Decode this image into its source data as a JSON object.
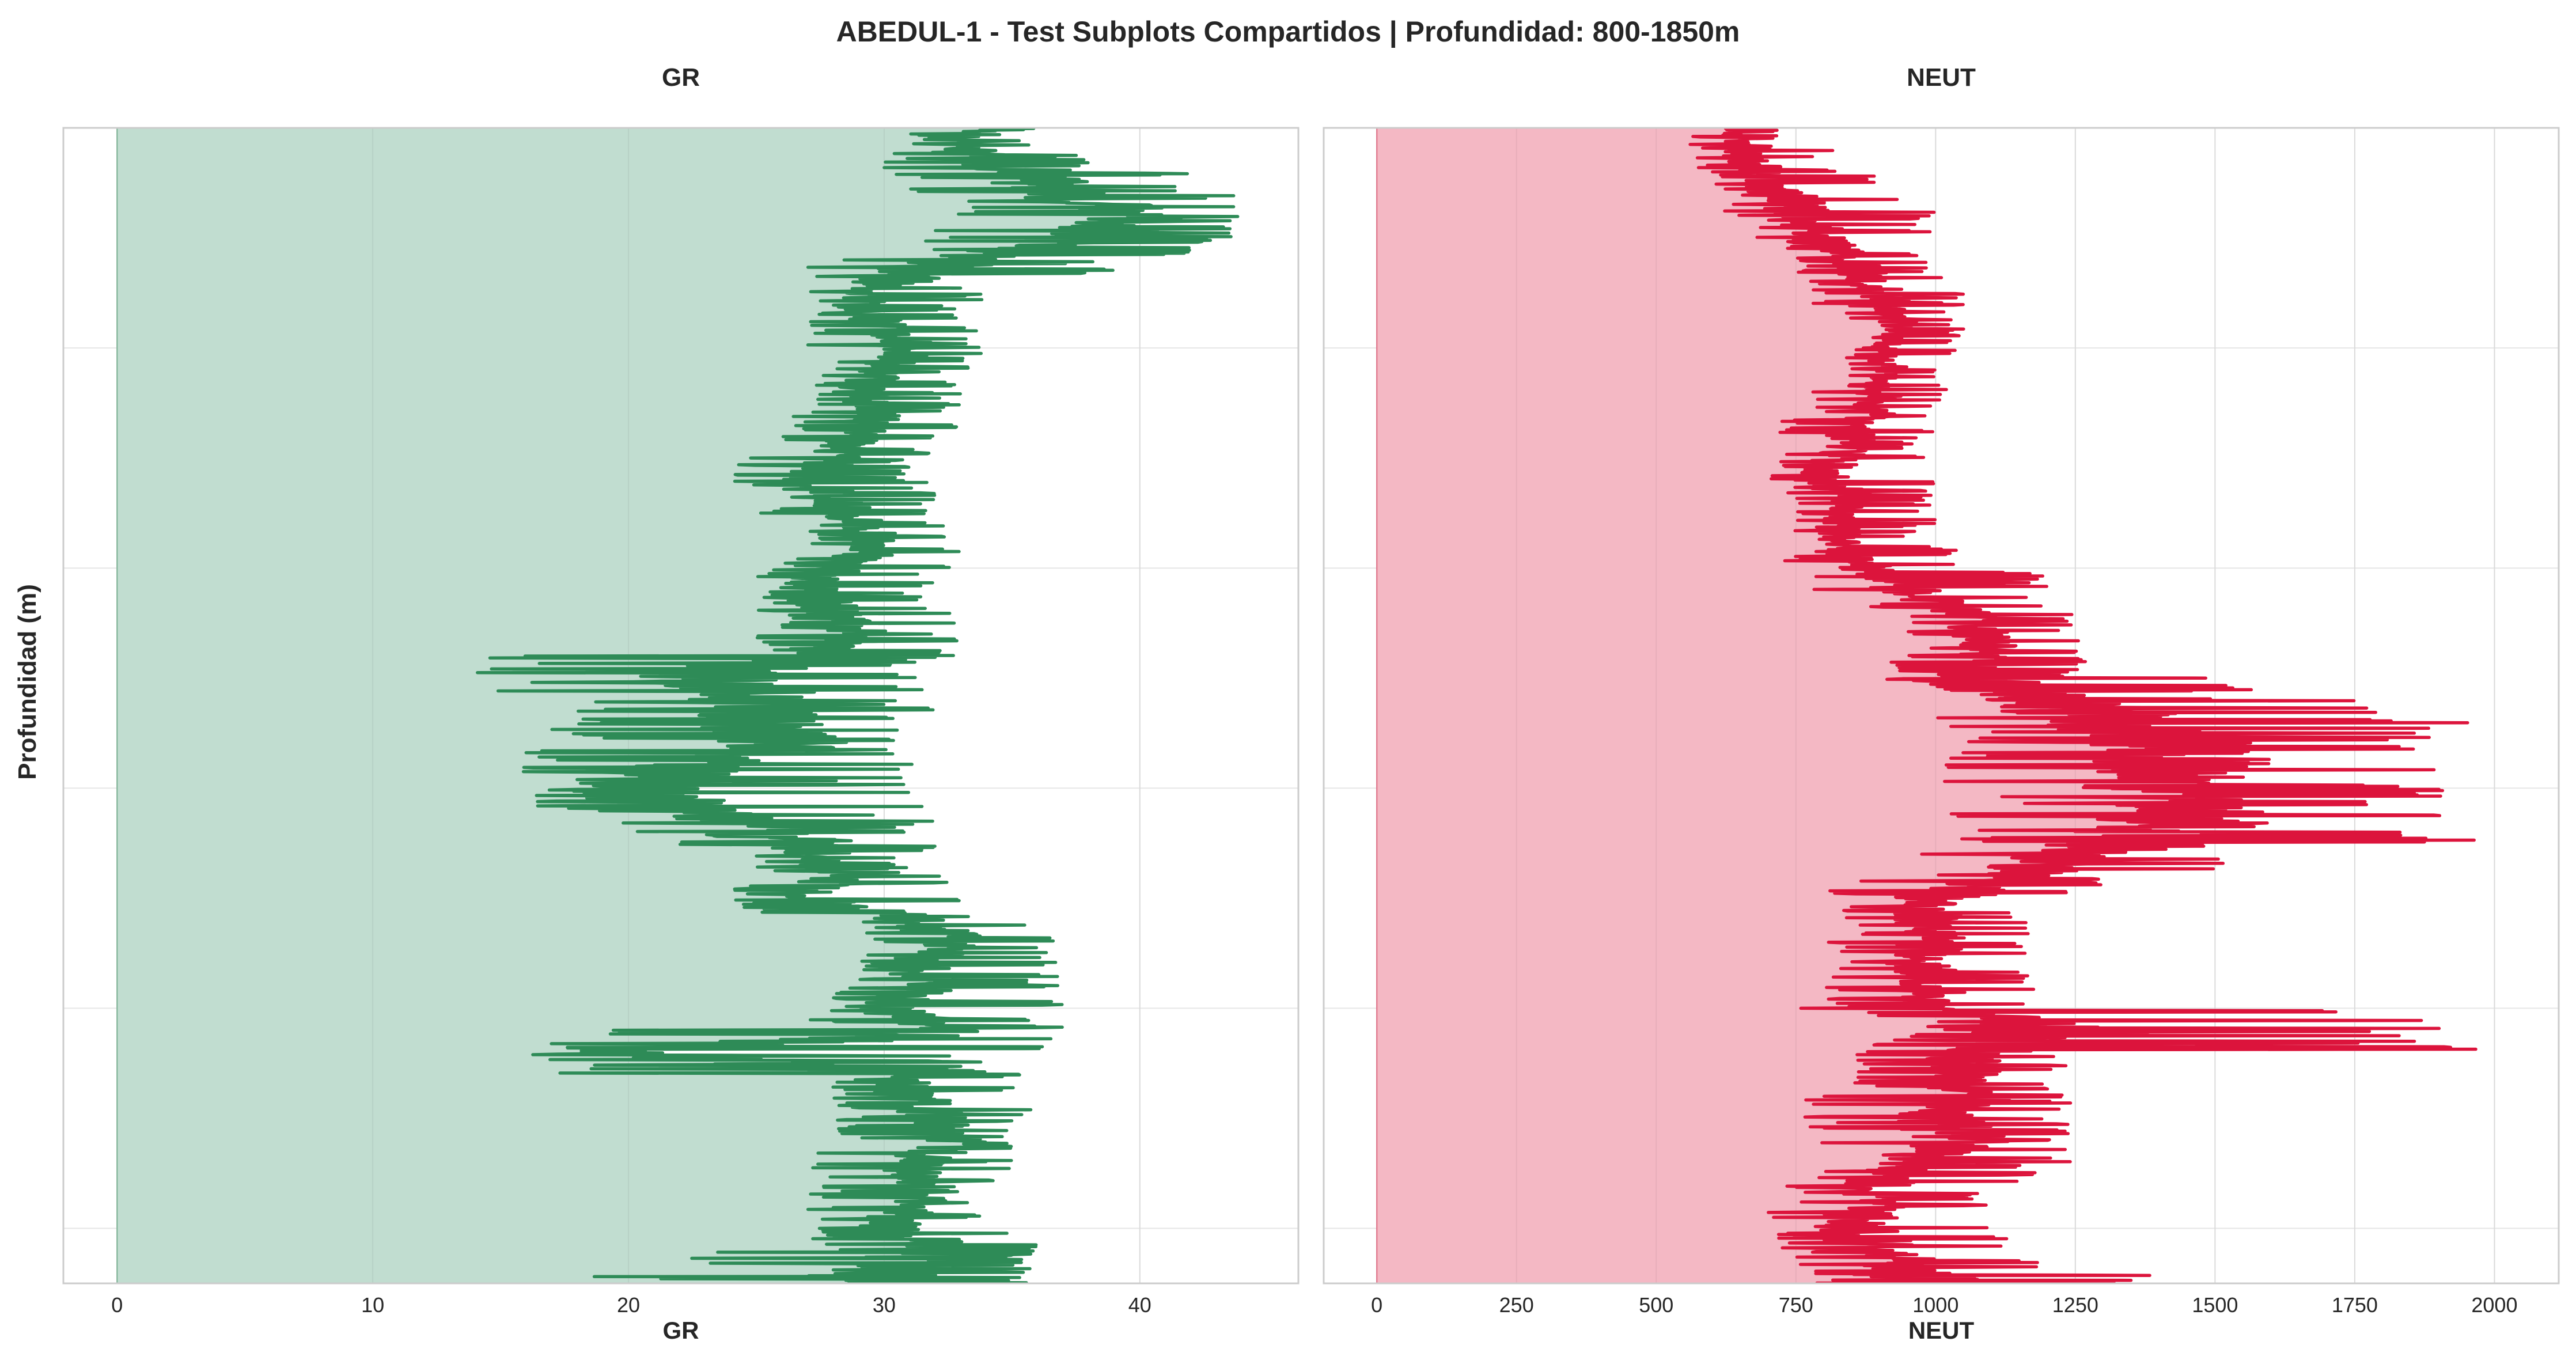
{
  "suptitle": "ABEDUL-1 - Test Subplots Compartidos | Profundidad: 800-1850m",
  "shared_ylabel": "Profundidad (m)",
  "chart_data": [
    {
      "type": "line",
      "title": "GR",
      "xlabel": "GR",
      "ylabel": "Profundidad (m)",
      "xlim": [
        -2.1,
        46.2
      ],
      "ylim": [
        1850,
        800
      ],
      "y_inverted": true,
      "grid": true,
      "fill_to_zero": true,
      "color": "#2e8b57",
      "fill_color": "#c1ddd0",
      "xticks": [
        0,
        10,
        20,
        30,
        40
      ],
      "series": [
        {
          "depth": [
            800,
            820,
            840,
            860,
            880,
            900,
            920,
            940,
            960,
            980,
            1000,
            1020,
            1040,
            1060,
            1080,
            1100,
            1120,
            1140,
            1160,
            1180,
            1200,
            1220,
            1240,
            1260,
            1280,
            1300,
            1320,
            1340,
            1360,
            1380,
            1400,
            1420,
            1440,
            1460,
            1480,
            1500,
            1520,
            1540,
            1560,
            1580,
            1600,
            1620,
            1640,
            1660,
            1680,
            1700,
            1720,
            1740,
            1760,
            1780,
            1800,
            1820,
            1840,
            1850
          ],
          "gr": [
            34,
            33,
            35,
            37,
            40,
            38,
            33,
            30,
            29,
            30,
            31,
            30,
            29,
            30,
            29,
            28,
            27,
            28,
            29,
            30,
            28,
            27,
            28,
            29,
            27,
            23,
            25,
            25,
            26,
            22,
            20,
            22,
            27,
            27,
            28,
            27,
            31,
            33,
            31,
            32,
            30,
            33,
            20,
            30,
            31,
            32,
            33,
            31,
            32,
            31,
            30,
            33,
            29,
            32
          ],
          "gr_low": [
            33,
            31,
            30,
            32,
            32,
            33,
            31,
            27,
            27,
            27,
            29,
            28,
            27,
            27,
            26,
            26,
            24,
            25,
            27,
            27,
            26,
            25,
            27,
            26,
            25,
            14,
            18,
            21,
            17,
            15,
            16,
            18,
            22,
            25,
            25,
            24,
            29,
            30,
            29,
            29,
            28,
            27,
            16,
            28,
            28,
            28,
            28,
            27,
            28,
            27,
            27,
            29,
            21,
            18
          ],
          "gr_high": [
            36,
            36,
            38,
            42,
            44,
            43,
            39,
            34,
            33,
            33,
            34,
            33,
            33,
            33,
            32,
            31,
            31,
            32,
            32,
            33,
            32,
            32,
            32,
            33,
            32,
            30,
            32,
            31,
            32,
            31,
            29,
            32,
            32,
            31,
            31,
            33,
            34,
            37,
            36,
            37,
            34,
            37,
            33,
            34,
            36,
            35,
            35,
            35,
            34,
            34,
            34,
            36,
            36,
            36
          ]
        }
      ]
    },
    {
      "type": "line",
      "title": "NEUT",
      "xlabel": "NEUT",
      "xlim": [
        -95,
        2115
      ],
      "ylim": [
        1850,
        800
      ],
      "y_inverted": true,
      "grid": true,
      "fill_to_zero": true,
      "color": "#dc143c",
      "fill_color": "#f4b8c4",
      "xticks": [
        0,
        250,
        500,
        750,
        1000,
        1250,
        1500,
        1750,
        2000
      ],
      "series": [
        {
          "depth": [
            800,
            820,
            840,
            860,
            880,
            900,
            920,
            940,
            960,
            980,
            1000,
            1020,
            1040,
            1060,
            1080,
            1100,
            1120,
            1140,
            1160,
            1180,
            1200,
            1220,
            1240,
            1260,
            1280,
            1300,
            1320,
            1340,
            1360,
            1380,
            1400,
            1420,
            1440,
            1460,
            1480,
            1500,
            1520,
            1540,
            1560,
            1580,
            1600,
            1620,
            1640,
            1660,
            1680,
            1700,
            1720,
            1740,
            1760,
            1780,
            1800,
            1820,
            1840,
            1850
          ],
          "neut": [
            650,
            640,
            690,
            720,
            760,
            800,
            850,
            880,
            920,
            940,
            900,
            920,
            900,
            880,
            850,
            820,
            800,
            860,
            830,
            820,
            880,
            960,
            1050,
            1080,
            1100,
            1050,
            1200,
            1350,
            1400,
            1450,
            1400,
            1450,
            1400,
            1250,
            1150,
            1000,
            980,
            1000,
            970,
            1000,
            960,
            1200,
            1050,
            1050,
            1050,
            1000,
            1050,
            950,
            900,
            880,
            850,
            900,
            950,
            1000
          ],
          "neut_low": [
            600,
            560,
            600,
            620,
            680,
            730,
            750,
            780,
            840,
            860,
            840,
            840,
            830,
            780,
            720,
            700,
            730,
            750,
            740,
            730,
            780,
            870,
            940,
            950,
            950,
            900,
            1000,
            1000,
            1050,
            1000,
            1050,
            1100,
            1000,
            1000,
            950,
            800,
            850,
            850,
            800,
            850,
            800,
            750,
            900,
            850,
            850,
            750,
            850,
            750,
            750,
            730,
            700,
            750,
            780,
            820
          ],
          "neut_high": [
            720,
            720,
            820,
            900,
            1010,
            950,
            980,
            1020,
            1050,
            1050,
            1040,
            1000,
            1020,
            1000,
            980,
            980,
            920,
            1000,
            980,
            960,
            1040,
            1200,
            1230,
            1260,
            1280,
            1250,
            1570,
            1900,
            1970,
            1780,
            1900,
            1910,
            2010,
            1540,
            1300,
            1160,
            1160,
            1200,
            1150,
            1200,
            1060,
            1980,
            1230,
            1240,
            1250,
            1230,
            1250,
            1200,
            1100,
            1000,
            1100,
            1150,
            1200,
            1400
          ]
        }
      ]
    }
  ]
}
